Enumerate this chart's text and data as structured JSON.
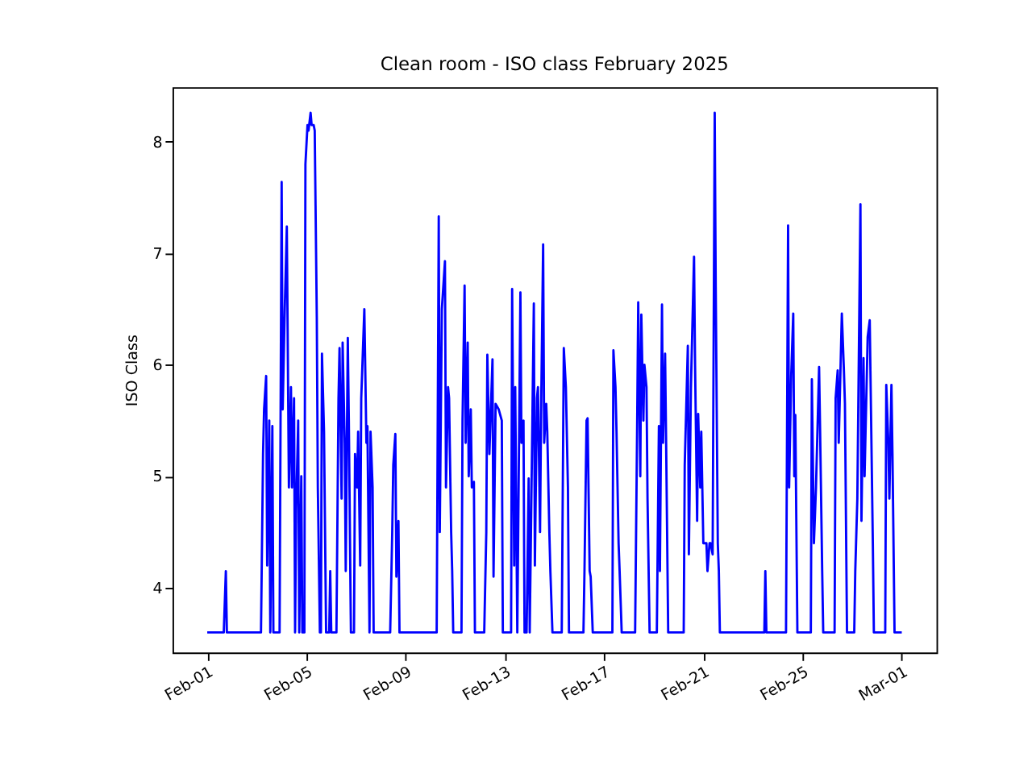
{
  "chart_data": {
    "type": "line",
    "title": "Clean room - ISO class February 2025",
    "ylabel": "ISO Class",
    "xlim": [
      "2025-01-30T14:24",
      "2025-03-02T09:36"
    ],
    "xticks": [
      {
        "value": "2025-02-01",
        "label": "Feb-01"
      },
      {
        "value": "2025-02-05",
        "label": "Feb-05"
      },
      {
        "value": "2025-02-09",
        "label": "Feb-09"
      },
      {
        "value": "2025-02-13",
        "label": "Feb-13"
      },
      {
        "value": "2025-02-17",
        "label": "Feb-17"
      },
      {
        "value": "2025-02-21",
        "label": "Feb-21"
      },
      {
        "value": "2025-02-25",
        "label": "Feb-25"
      },
      {
        "value": "2025-03-01",
        "label": "Mar-01"
      }
    ],
    "ylim": [
      3.42,
      8.49
    ],
    "yticks": [
      4,
      5,
      6,
      7,
      8
    ],
    "grid": false,
    "series": [
      {
        "color": "#0000ff",
        "x": [
          "2025-02-01T00:00",
          "2025-02-01T16:00",
          "2025-02-01T18:00",
          "2025-02-01T19:00",
          "2025-02-03T04:00",
          "2025-02-03T06:00",
          "2025-02-03T07:00",
          "2025-02-03T09:00",
          "2025-02-03T10:00",
          "2025-02-03T12:00",
          "2025-02-03T13:00",
          "2025-02-03T15:00",
          "2025-02-03T16:00",
          "2025-02-03T22:00",
          "2025-02-04T00:00",
          "2025-02-04T01:00",
          "2025-02-04T03:00",
          "2025-02-04T05:00",
          "2025-02-04T07:00",
          "2025-02-04T09:00",
          "2025-02-04T10:00",
          "2025-02-04T12:00",
          "2025-02-04T13:00",
          "2025-02-04T14:00",
          "2025-02-04T16:00",
          "2025-02-04T17:00",
          "2025-02-04T19:00",
          "2025-02-04T20:00",
          "2025-02-04T22:00",
          "2025-02-04T23:00",
          "2025-02-05T01:00",
          "2025-02-05T02:00",
          "2025-02-05T04:00",
          "2025-02-05T05:00",
          "2025-02-05T07:00",
          "2025-02-05T08:00",
          "2025-02-05T10:00",
          "2025-02-05T11:00",
          "2025-02-05T13:00",
          "2025-02-05T14:00",
          "2025-02-05T15:00",
          "2025-02-05T17:00",
          "2025-02-05T19:00",
          "2025-02-05T22:00",
          "2025-02-05T23:00",
          "2025-02-06T00:00",
          "2025-02-06T05:00",
          "2025-02-06T07:00",
          "2025-02-06T08:00",
          "2025-02-06T10:00",
          "2025-02-06T11:00",
          "2025-02-06T13:00",
          "2025-02-06T14:00",
          "2025-02-06T16:00",
          "2025-02-06T17:00",
          "2025-02-06T19:00",
          "2025-02-06T22:00",
          "2025-02-06T23:00",
          "2025-02-07T01:00",
          "2025-02-07T02:00",
          "2025-02-07T04:00",
          "2025-02-07T05:00",
          "2025-02-07T08:00",
          "2025-02-07T10:00",
          "2025-02-07T11:00",
          "2025-02-07T13:00",
          "2025-02-07T14:00",
          "2025-02-07T16:00",
          "2025-02-07T17:00",
          "2025-02-08T09:00",
          "2025-02-08T11:00",
          "2025-02-08T12:00",
          "2025-02-08T14:00",
          "2025-02-08T15:00",
          "2025-02-08T17:00",
          "2025-02-08T18:00",
          "2025-02-10T06:00",
          "2025-02-10T08:00",
          "2025-02-10T09:00",
          "2025-02-10T11:00",
          "2025-02-10T14:00",
          "2025-02-10T15:00",
          "2025-02-10T17:00",
          "2025-02-10T18:00",
          "2025-02-10T20:00",
          "2025-02-10T21:00",
          "2025-02-10T22:00",
          "2025-02-11T06:00",
          "2025-02-11T07:00",
          "2025-02-11T09:00",
          "2025-02-11T10:00",
          "2025-02-11T12:00",
          "2025-02-11T13:00",
          "2025-02-11T15:00",
          "2025-02-11T16:00",
          "2025-02-11T18:00",
          "2025-02-11T19:00",
          "2025-02-12T04:00",
          "2025-02-12T06:00",
          "2025-02-12T07:00",
          "2025-02-12T09:00",
          "2025-02-12T12:00",
          "2025-02-12T13:00",
          "2025-02-12T15:00",
          "2025-02-12T18:00",
          "2025-02-12T21:00",
          "2025-02-12T22:00",
          "2025-02-13T06:00",
          "2025-02-13T07:00",
          "2025-02-13T09:00",
          "2025-02-13T10:00",
          "2025-02-13T12:00",
          "2025-02-13T15:00",
          "2025-02-13T16:00",
          "2025-02-13T18:00",
          "2025-02-13T19:00",
          "2025-02-13T21:00",
          "2025-02-13T23:00",
          "2025-02-14T00:00",
          "2025-02-14T04:00",
          "2025-02-14T05:00",
          "2025-02-14T07:00",
          "2025-02-14T08:00",
          "2025-02-14T10:00",
          "2025-02-14T11:00",
          "2025-02-14T13:00",
          "2025-02-14T14:00",
          "2025-02-14T16:00",
          "2025-02-14T17:00",
          "2025-02-14T19:00",
          "2025-02-14T20:00",
          "2025-02-14T22:00",
          "2025-02-15T07:00",
          "2025-02-15T09:00",
          "2025-02-15T11:00",
          "2025-02-15T13:00",
          "2025-02-15T14:00",
          "2025-02-16T04:00",
          "2025-02-16T05:00",
          "2025-02-16T07:00",
          "2025-02-16T08:00",
          "2025-02-16T10:00",
          "2025-02-16T11:00",
          "2025-02-16T13:00",
          "2025-02-17T08:00",
          "2025-02-17T09:00",
          "2025-02-17T11:00",
          "2025-02-17T12:00",
          "2025-02-17T14:00",
          "2025-02-17T15:00",
          "2025-02-17T17:00",
          "2025-02-18T06:00",
          "2025-02-18T08:00",
          "2025-02-18T09:00",
          "2025-02-18T11:00",
          "2025-02-18T12:00",
          "2025-02-18T14:00",
          "2025-02-18T15:00",
          "2025-02-18T17:00",
          "2025-02-18T18:00",
          "2025-02-18T20:00",
          "2025-02-19T03:00",
          "2025-02-19T05:00",
          "2025-02-19T06:00",
          "2025-02-19T08:00",
          "2025-02-19T09:00",
          "2025-02-19T11:00",
          "2025-02-19T12:00",
          "2025-02-19T14:00",
          "2025-02-20T05:00",
          "2025-02-20T06:00",
          "2025-02-20T09:00",
          "2025-02-20T10:00",
          "2025-02-20T12:00",
          "2025-02-20T15:00",
          "2025-02-20T16:00",
          "2025-02-20T18:00",
          "2025-02-20T19:00",
          "2025-02-20T21:00",
          "2025-02-20T22:00",
          "2025-02-21T00:00",
          "2025-02-21T03:00",
          "2025-02-21T04:00",
          "2025-02-21T06:00",
          "2025-02-21T07:00",
          "2025-02-21T09:00",
          "2025-02-21T11:00",
          "2025-02-21T12:00",
          "2025-02-21T14:00",
          "2025-02-21T15:00",
          "2025-02-21T16:00",
          "2025-02-23T11:00",
          "2025-02-23T12:00",
          "2025-02-23T13:00",
          "2025-02-24T08:00",
          "2025-02-24T10:00",
          "2025-02-24T11:00",
          "2025-02-24T13:00",
          "2025-02-24T15:00",
          "2025-02-24T16:00",
          "2025-02-24T17:00",
          "2025-02-24T19:00",
          "2025-02-25T08:00",
          "2025-02-25T09:00",
          "2025-02-25T11:00",
          "2025-02-25T13:00",
          "2025-02-25T16:00",
          "2025-02-25T17:00",
          "2025-02-25T19:00",
          "2025-02-25T20:00",
          "2025-02-26T07:00",
          "2025-02-26T08:00",
          "2025-02-26T10:00",
          "2025-02-26T11:00",
          "2025-02-26T14:00",
          "2025-02-26T16:00",
          "2025-02-26T17:00",
          "2025-02-26T19:00",
          "2025-02-27T02:00",
          "2025-02-27T03:00",
          "2025-02-27T05:00",
          "2025-02-27T08:00",
          "2025-02-27T09:00",
          "2025-02-27T11:00",
          "2025-02-27T12:00",
          "2025-02-27T15:00",
          "2025-02-27T17:00",
          "2025-02-27T20:00",
          "2025-02-27T21:00",
          "2025-02-28T08:00",
          "2025-02-28T09:00",
          "2025-02-28T11:00",
          "2025-02-28T12:00",
          "2025-02-28T14:00",
          "2025-02-28T15:00",
          "2025-02-28T17:00",
          "2025-03-01T00:00"
        ],
        "values": [
          3.6,
          3.6,
          4.15,
          3.6,
          3.6,
          5.2,
          5.6,
          5.9,
          4.2,
          5.5,
          3.6,
          5.45,
          3.6,
          3.6,
          7.64,
          5.6,
          6.5,
          7.24,
          4.9,
          5.8,
          4.9,
          5.7,
          3.6,
          4.7,
          5.5,
          3.6,
          5.0,
          3.6,
          3.6,
          7.8,
          8.15,
          8.1,
          8.26,
          8.15,
          8.15,
          8.1,
          6.43,
          4.9,
          3.6,
          3.6,
          6.1,
          5.4,
          3.6,
          3.6,
          4.15,
          3.6,
          3.6,
          5.7,
          6.15,
          4.8,
          6.2,
          5.3,
          4.15,
          6.24,
          5.5,
          3.6,
          3.6,
          5.2,
          4.9,
          5.4,
          4.2,
          5.7,
          6.5,
          5.3,
          5.45,
          3.6,
          5.4,
          4.9,
          3.6,
          3.6,
          4.5,
          5.1,
          5.38,
          4.1,
          4.6,
          3.6,
          3.6,
          7.33,
          4.5,
          6.5,
          6.93,
          4.9,
          5.8,
          5.7,
          4.5,
          4.15,
          3.6,
          3.6,
          5.5,
          6.71,
          5.3,
          6.2,
          5.0,
          5.6,
          4.9,
          4.95,
          3.6,
          3.6,
          4.5,
          6.09,
          5.2,
          6.05,
          4.1,
          5.65,
          5.6,
          5.5,
          3.6,
          3.6,
          6.68,
          4.2,
          5.8,
          3.6,
          6.65,
          5.3,
          5.5,
          3.6,
          3.6,
          4.98,
          3.6,
          6.55,
          4.2,
          5.7,
          5.8,
          4.5,
          5.55,
          7.08,
          5.3,
          5.65,
          5.4,
          4.5,
          4.15,
          3.6,
          3.6,
          6.15,
          5.8,
          4.9,
          3.6,
          3.6,
          4.15,
          5.5,
          5.52,
          4.15,
          4.1,
          3.6,
          3.6,
          6.13,
          5.8,
          5.4,
          4.4,
          4.15,
          3.6,
          3.6,
          5.5,
          6.56,
          5.0,
          6.45,
          5.5,
          6.0,
          5.8,
          4.8,
          3.6,
          3.6,
          5.45,
          4.15,
          6.54,
          5.3,
          6.1,
          5.3,
          3.6,
          3.6,
          5.1,
          6.17,
          4.3,
          5.8,
          6.97,
          6.0,
          4.6,
          5.56,
          4.9,
          5.4,
          4.4,
          4.4,
          4.15,
          4.4,
          4.4,
          4.3,
          8.26,
          6.7,
          4.4,
          4.15,
          3.6,
          3.6,
          4.15,
          3.6,
          3.6,
          7.25,
          4.9,
          5.9,
          6.46,
          5.0,
          5.55,
          3.6,
          3.6,
          5.87,
          4.4,
          4.9,
          5.98,
          5.4,
          4.15,
          3.6,
          3.6,
          5.7,
          5.95,
          5.3,
          6.46,
          5.95,
          5.65,
          3.6,
          3.6,
          4.15,
          4.8,
          7.44,
          4.6,
          6.06,
          5.0,
          6.25,
          6.4,
          4.4,
          3.6,
          3.6,
          5.82,
          5.3,
          4.8,
          5.82,
          5.2,
          3.6,
          3.6
        ]
      }
    ]
  }
}
